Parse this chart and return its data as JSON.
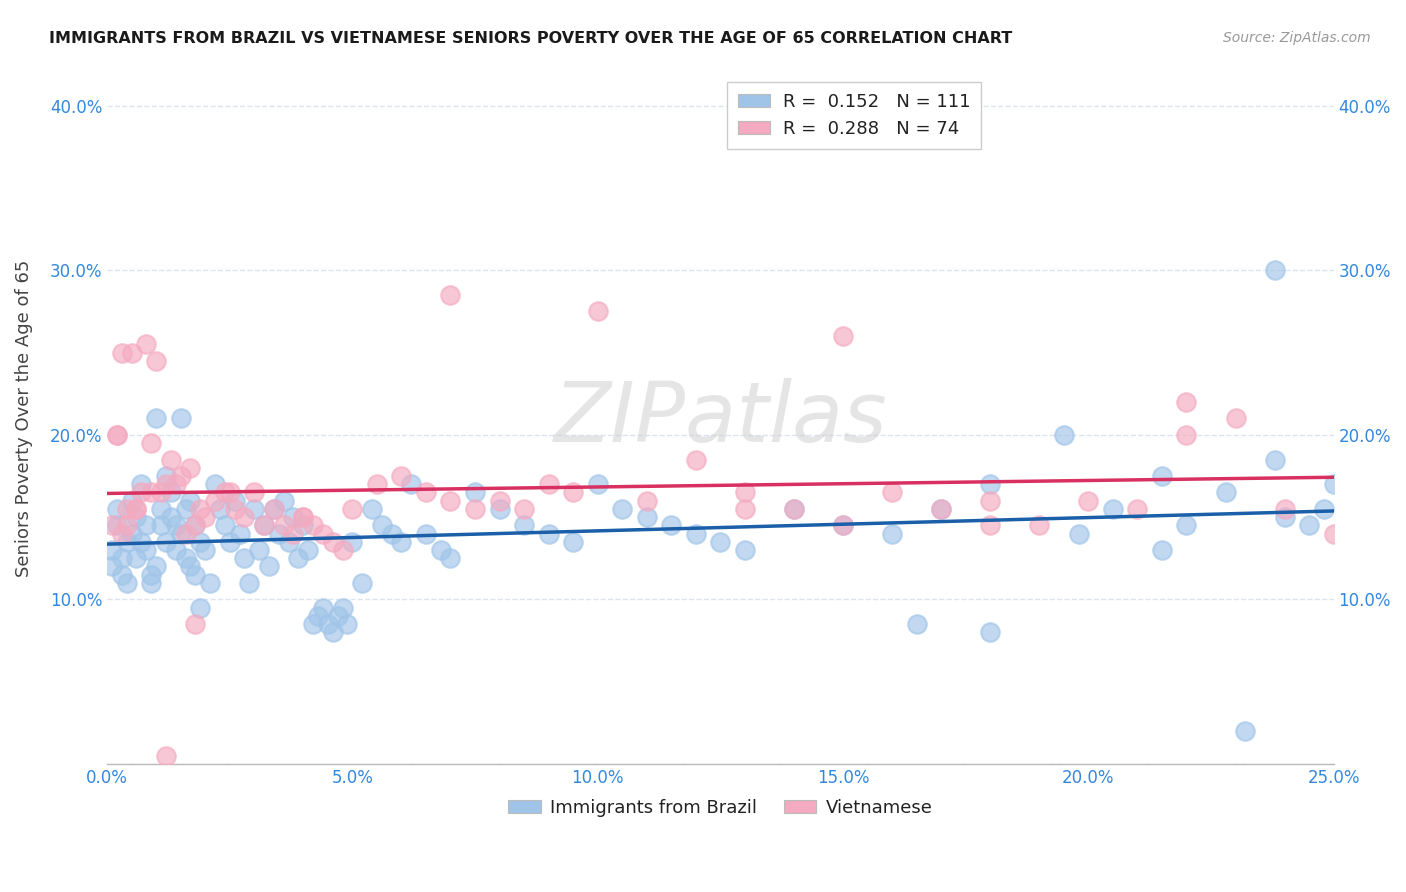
{
  "title": "IMMIGRANTS FROM BRAZIL VS VIETNAMESE SENIORS POVERTY OVER THE AGE OF 65 CORRELATION CHART",
  "source": "Source: ZipAtlas.com",
  "ylabel": "Seniors Poverty Over the Age of 65",
  "xlim": [
    0.0,
    0.25
  ],
  "ylim": [
    0.0,
    0.42
  ],
  "blue_color": "#a0c4e8",
  "pink_color": "#f4aac0",
  "blue_line_color": "#1a5fa8",
  "pink_line_color": "#d83060",
  "tick_color": "#3388dd",
  "grid_color": "#dde4ee",
  "background_color": "#ffffff",
  "legend1_label": "R =  0.152   N = 111",
  "legend2_label": "R =  0.288   N = 74",
  "cat_label1": "Immigrants from Brazil",
  "cat_label2": "Vietnamese",
  "brazil_x": [
    0.001,
    0.002,
    0.001,
    0.003,
    0.002,
    0.004,
    0.003,
    0.005,
    0.004,
    0.006,
    0.005,
    0.007,
    0.006,
    0.008,
    0.007,
    0.009,
    0.008,
    0.01,
    0.009,
    0.011,
    0.01,
    0.012,
    0.011,
    0.013,
    0.012,
    0.014,
    0.013,
    0.015,
    0.014,
    0.016,
    0.015,
    0.017,
    0.016,
    0.018,
    0.017,
    0.019,
    0.018,
    0.02,
    0.019,
    0.021,
    0.022,
    0.023,
    0.024,
    0.025,
    0.026,
    0.027,
    0.028,
    0.029,
    0.03,
    0.031,
    0.032,
    0.033,
    0.034,
    0.035,
    0.036,
    0.037,
    0.038,
    0.039,
    0.04,
    0.041,
    0.042,
    0.043,
    0.044,
    0.045,
    0.046,
    0.047,
    0.048,
    0.049,
    0.05,
    0.052,
    0.054,
    0.056,
    0.058,
    0.06,
    0.062,
    0.065,
    0.068,
    0.07,
    0.075,
    0.08,
    0.085,
    0.09,
    0.095,
    0.1,
    0.105,
    0.11,
    0.115,
    0.12,
    0.125,
    0.13,
    0.14,
    0.15,
    0.16,
    0.17,
    0.18,
    0.195,
    0.205,
    0.215,
    0.22,
    0.228,
    0.232,
    0.238,
    0.24,
    0.245,
    0.248,
    0.25,
    0.238,
    0.215,
    0.198,
    0.18,
    0.165
  ],
  "brazil_y": [
    0.12,
    0.155,
    0.13,
    0.125,
    0.145,
    0.135,
    0.115,
    0.14,
    0.11,
    0.15,
    0.16,
    0.17,
    0.125,
    0.145,
    0.135,
    0.115,
    0.13,
    0.12,
    0.11,
    0.145,
    0.21,
    0.175,
    0.155,
    0.165,
    0.135,
    0.145,
    0.15,
    0.21,
    0.13,
    0.155,
    0.14,
    0.16,
    0.125,
    0.145,
    0.12,
    0.135,
    0.115,
    0.13,
    0.095,
    0.11,
    0.17,
    0.155,
    0.145,
    0.135,
    0.16,
    0.14,
    0.125,
    0.11,
    0.155,
    0.13,
    0.145,
    0.12,
    0.155,
    0.14,
    0.16,
    0.135,
    0.15,
    0.125,
    0.145,
    0.13,
    0.085,
    0.09,
    0.095,
    0.085,
    0.08,
    0.09,
    0.095,
    0.085,
    0.135,
    0.11,
    0.155,
    0.145,
    0.14,
    0.135,
    0.17,
    0.14,
    0.13,
    0.125,
    0.165,
    0.155,
    0.145,
    0.14,
    0.135,
    0.17,
    0.155,
    0.15,
    0.145,
    0.14,
    0.135,
    0.13,
    0.155,
    0.145,
    0.14,
    0.155,
    0.17,
    0.2,
    0.155,
    0.13,
    0.145,
    0.165,
    0.02,
    0.3,
    0.15,
    0.145,
    0.155,
    0.17,
    0.185,
    0.175,
    0.14,
    0.08,
    0.085
  ],
  "viet_x": [
    0.001,
    0.002,
    0.003,
    0.004,
    0.005,
    0.006,
    0.007,
    0.008,
    0.009,
    0.01,
    0.011,
    0.012,
    0.013,
    0.014,
    0.015,
    0.016,
    0.017,
    0.018,
    0.019,
    0.02,
    0.022,
    0.024,
    0.026,
    0.028,
    0.03,
    0.032,
    0.034,
    0.036,
    0.038,
    0.04,
    0.042,
    0.044,
    0.046,
    0.048,
    0.05,
    0.055,
    0.06,
    0.065,
    0.07,
    0.075,
    0.08,
    0.085,
    0.09,
    0.095,
    0.1,
    0.11,
    0.12,
    0.13,
    0.14,
    0.15,
    0.16,
    0.17,
    0.18,
    0.19,
    0.2,
    0.21,
    0.22,
    0.23,
    0.24,
    0.25,
    0.15,
    0.22,
    0.18,
    0.13,
    0.07,
    0.04,
    0.025,
    0.018,
    0.012,
    0.009,
    0.006,
    0.004,
    0.003,
    0.002
  ],
  "viet_y": [
    0.145,
    0.2,
    0.25,
    0.155,
    0.25,
    0.155,
    0.165,
    0.255,
    0.195,
    0.245,
    0.165,
    0.17,
    0.185,
    0.17,
    0.175,
    0.14,
    0.18,
    0.145,
    0.155,
    0.15,
    0.16,
    0.165,
    0.155,
    0.15,
    0.165,
    0.145,
    0.155,
    0.145,
    0.14,
    0.15,
    0.145,
    0.14,
    0.135,
    0.13,
    0.155,
    0.17,
    0.175,
    0.165,
    0.16,
    0.155,
    0.16,
    0.155,
    0.17,
    0.165,
    0.275,
    0.16,
    0.185,
    0.165,
    0.155,
    0.145,
    0.165,
    0.155,
    0.16,
    0.145,
    0.16,
    0.155,
    0.2,
    0.21,
    0.155,
    0.14,
    0.26,
    0.22,
    0.145,
    0.155,
    0.285,
    0.15,
    0.165,
    0.085,
    0.005,
    0.165,
    0.155,
    0.145,
    0.14,
    0.2
  ]
}
